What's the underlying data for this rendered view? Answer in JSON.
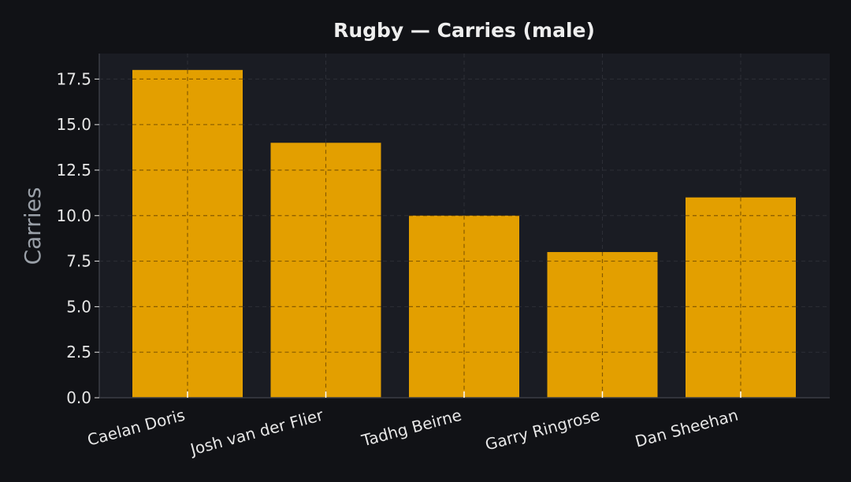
{
  "chart_data": {
    "type": "bar",
    "title": "Rugby — Carries (male)",
    "xlabel": "",
    "ylabel": "Carries",
    "categories": [
      "Caelan Doris",
      "Josh van der Flier",
      "Tadhg Beirne",
      "Garry Ringrose",
      "Dan Sheehan"
    ],
    "values": [
      18,
      14,
      10,
      8,
      11
    ],
    "ylim": [
      0,
      18.9
    ],
    "yticks": [
      0.0,
      2.5,
      5.0,
      7.5,
      10.0,
      12.5,
      15.0,
      17.5
    ],
    "ytick_labels": [
      "0.0",
      "2.5",
      "5.0",
      "7.5",
      "10.0",
      "12.5",
      "15.0",
      "17.5"
    ],
    "grid": true,
    "legend": "none"
  },
  "colors": {
    "background": "#111216",
    "plot_background": "#1a1c23",
    "bar": "#e39f00",
    "grid": "#2c2e36",
    "axis": "#3a3d45"
  }
}
